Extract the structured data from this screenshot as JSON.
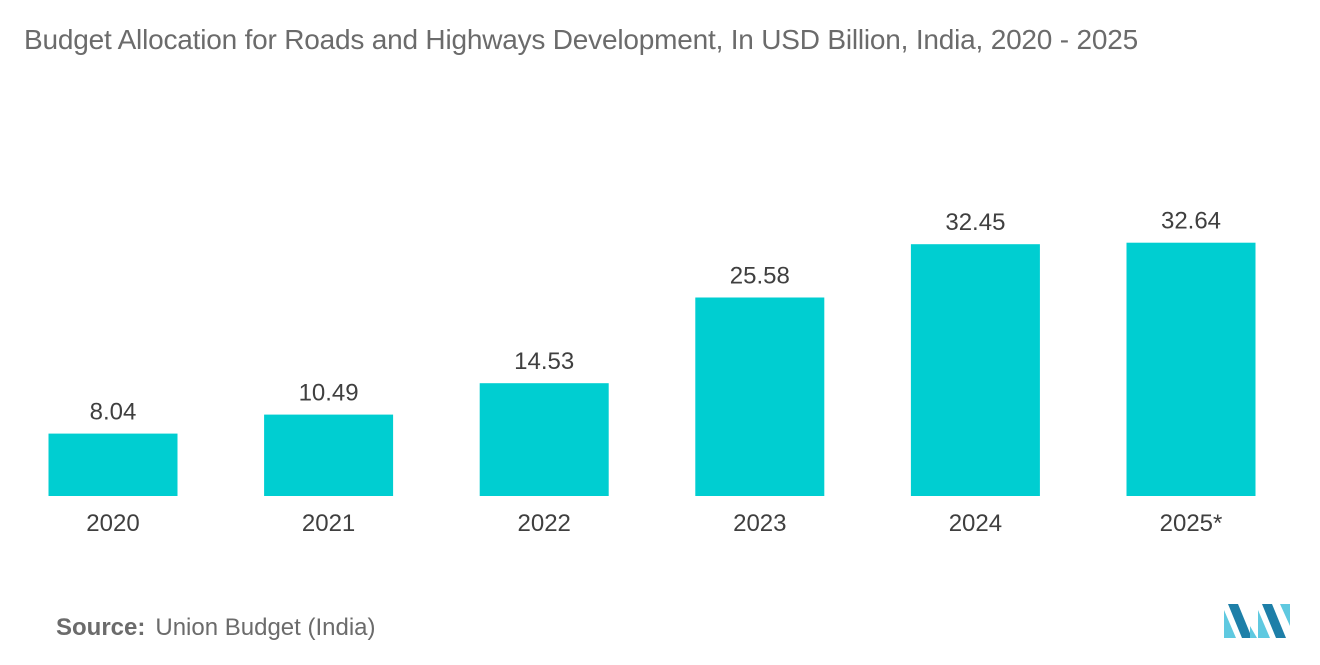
{
  "chart_data": {
    "type": "bar",
    "title": "Budget Allocation for Roads and Highways Development, In USD Billion, India, 2020 - 2025",
    "categories": [
      "2020",
      "2021",
      "2022",
      "2023",
      "2024",
      "2025*"
    ],
    "values": [
      8.04,
      10.49,
      14.53,
      25.58,
      32.45,
      32.64
    ],
    "value_labels": [
      "8.04",
      "10.49",
      "14.53",
      "25.58",
      "32.45",
      "32.64"
    ],
    "xlabel": "",
    "ylabel": "",
    "ylim": [
      0,
      45
    ],
    "grid": false,
    "legend": "none",
    "bar_color": "#00CED1"
  },
  "source": {
    "key": "Source:",
    "text": "Union Budget (India)"
  },
  "logo": {
    "icon": "mordor-intelligence-logo-icon",
    "colors": [
      "#5FC9E0",
      "#1E7FA8"
    ]
  }
}
